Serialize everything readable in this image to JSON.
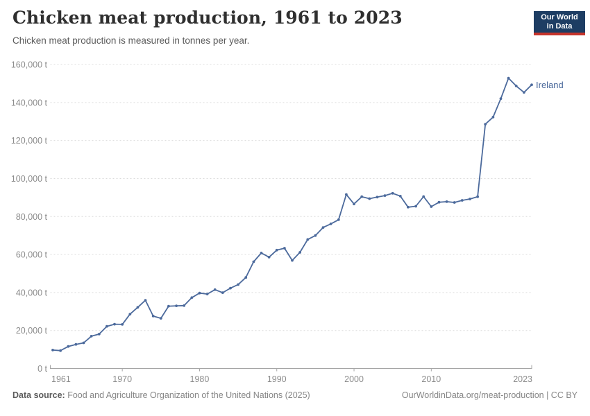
{
  "header": {
    "title": "Chicken meat production, 1961 to 2023",
    "subtitle": "Chicken meat production is measured in tonnes per year.",
    "logo": {
      "line1": "Our World",
      "line2": "in Data"
    }
  },
  "chart_data": {
    "type": "line",
    "title": "Chicken meat production, 1961 to 2023",
    "subtitle": "Chicken meat production is measured in tonnes per year.",
    "unit": "t",
    "grid": "horizontal-dashed",
    "legend_position": "end-of-line-label",
    "xlim": [
      1961,
      2023
    ],
    "ylim": [
      0,
      160000
    ],
    "x_ticks": [
      1961,
      1970,
      1980,
      1990,
      2000,
      2010,
      2023
    ],
    "x_tick_labels": [
      "1961",
      "1970",
      "1980",
      "1990",
      "2000",
      "2010",
      "2023"
    ],
    "y_ticks": [
      0,
      20000,
      40000,
      60000,
      80000,
      100000,
      120000,
      140000,
      160000
    ],
    "y_tick_labels": [
      "0 t",
      "20,000 t",
      "40,000 t",
      "60,000 t",
      "80,000 t",
      "100,000 t",
      "120,000 t",
      "140,000 t",
      "160,000 t"
    ],
    "series": [
      {
        "name": "Ireland",
        "color": "#4C6A9C",
        "x": [
          1961,
          1962,
          1963,
          1964,
          1965,
          1966,
          1967,
          1968,
          1969,
          1970,
          1971,
          1972,
          1973,
          1974,
          1975,
          1976,
          1977,
          1978,
          1979,
          1980,
          1981,
          1982,
          1983,
          1984,
          1985,
          1986,
          1987,
          1988,
          1989,
          1990,
          1991,
          1992,
          1993,
          1994,
          1995,
          1996,
          1997,
          1998,
          1999,
          2000,
          2001,
          2002,
          2003,
          2004,
          2005,
          2006,
          2007,
          2008,
          2009,
          2010,
          2011,
          2012,
          2013,
          2014,
          2015,
          2016,
          2017,
          2018,
          2019,
          2020,
          2021,
          2022,
          2023
        ],
        "values": [
          9700,
          9400,
          11600,
          12700,
          13500,
          17000,
          18100,
          22200,
          23300,
          23200,
          28600,
          32200,
          35900,
          27600,
          26400,
          32800,
          33000,
          33100,
          37300,
          39700,
          39200,
          41500,
          39900,
          42300,
          44200,
          47900,
          56200,
          60800,
          58600,
          62300,
          63300,
          56900,
          61100,
          67900,
          70000,
          74200,
          76100,
          78300,
          91600,
          86600,
          90400,
          89400,
          90200,
          91000,
          92200,
          90700,
          84900,
          85400,
          90500,
          85200,
          87500,
          87800,
          87400,
          88500,
          89200,
          90400,
          128600,
          132300,
          142000,
          152800,
          148700,
          145300,
          149300
        ]
      }
    ]
  },
  "colors": {
    "line": "#4C6A9C",
    "gridline": "#dcdcdc",
    "axis": "#a5a5a5",
    "tick_text": "#8c8c8c",
    "logo_bg": "#1d3d63",
    "logo_stripe": "#c5342b"
  },
  "footer": {
    "datasource_label": "Data source:",
    "datasource_text": " Food and Agriculture Organization of the United Nations (2025)",
    "link": "OurWorldinData.org/meat-production | CC BY"
  }
}
